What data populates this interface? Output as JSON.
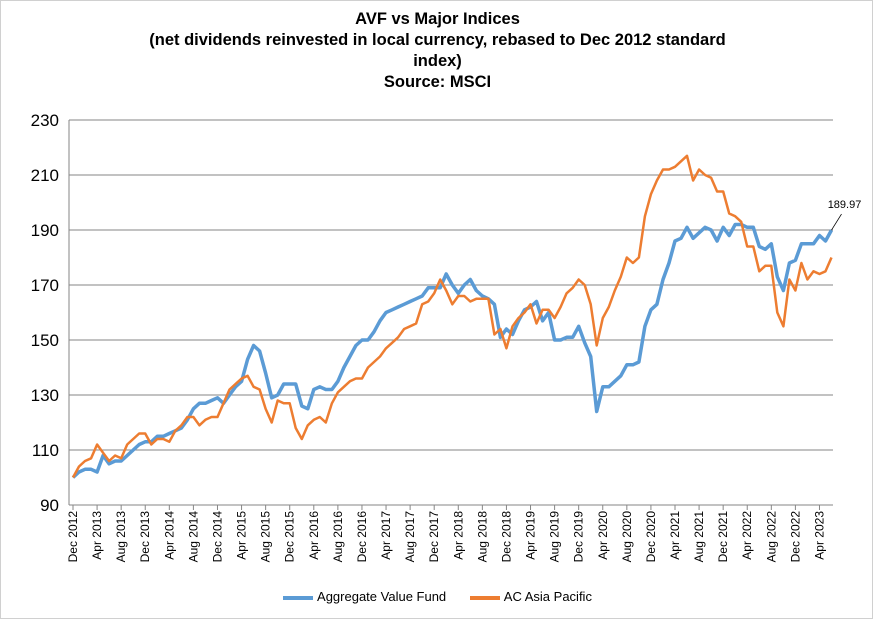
{
  "chart_data": {
    "type": "line",
    "title": [
      "AVF vs Major  Indices",
      "(net dividends reinvested in local currency, rebased to Dec 2012 standard",
      "index)",
      "Source: MSCI"
    ],
    "ylim": [
      90,
      230
    ],
    "yticks": [
      90,
      110,
      130,
      150,
      170,
      190,
      210,
      230
    ],
    "grid": true,
    "legend_placement": "bottom",
    "x_start": "Dec 2012",
    "x_end": "Jun 2023",
    "x_frequency": "monthly",
    "xtick_labels": [
      "Dec 2012",
      "Apr 2013",
      "Aug 2013",
      "Dec 2013",
      "Apr 2014",
      "Aug 2014",
      "Dec 2014",
      "Apr 2015",
      "Aug 2015",
      "Dec 2015",
      "Apr 2016",
      "Aug 2016",
      "Dec 2016",
      "Apr 2017",
      "Aug 2017",
      "Dec 2017",
      "Apr 2018",
      "Aug 2018",
      "Dec 2018",
      "Apr 2019",
      "Aug 2019",
      "Dec 2019",
      "Apr 2020",
      "Aug 2020",
      "Dec 2020",
      "Apr 2021",
      "Aug 2021",
      "Dec 2021",
      "Apr 2022",
      "Aug 2022",
      "Dec 2022",
      "Apr 2023"
    ],
    "annotation": "189.97",
    "series": [
      {
        "name": "Aggregate Value Fund",
        "color": "#5b9bd5",
        "values": [
          100,
          102,
          103,
          103,
          102,
          108,
          105,
          106,
          106,
          108,
          110,
          112,
          113,
          113,
          115,
          115,
          116,
          117,
          118,
          121,
          125,
          127,
          127,
          128,
          129,
          127,
          130,
          133,
          135,
          143,
          148,
          146,
          138,
          129,
          130,
          134,
          134,
          134,
          126,
          125,
          132,
          133,
          132,
          132,
          135,
          140,
          144,
          148,
          150,
          150,
          153,
          157,
          160,
          161,
          162,
          163,
          164,
          165,
          166,
          169,
          169,
          169,
          174,
          170,
          167,
          170,
          172,
          168,
          166,
          165,
          163,
          151,
          154,
          152,
          157,
          161,
          162,
          164,
          157,
          160,
          150,
          150,
          151,
          151,
          155,
          149,
          144,
          124,
          133,
          133,
          135,
          137,
          141,
          141,
          142,
          155,
          161,
          163,
          172,
          178,
          186,
          187,
          191,
          187,
          189,
          191,
          190,
          186,
          191,
          188,
          192,
          192,
          191,
          191,
          184,
          183,
          185,
          173,
          168,
          178,
          179,
          185,
          185,
          185,
          188,
          186,
          189.97
        ]
      },
      {
        "name": "AC Asia Pacific",
        "color": "#ed7d31",
        "values": [
          100,
          104,
          106,
          107,
          112,
          109,
          106,
          108,
          107,
          112,
          114,
          116,
          116,
          112,
          114,
          114,
          113,
          117,
          119,
          122,
          122,
          119,
          121,
          122,
          122,
          127,
          132,
          134,
          136,
          137,
          133,
          132,
          125,
          120,
          128,
          127,
          127,
          118,
          114,
          119,
          121,
          122,
          120,
          127,
          131,
          133,
          135,
          136,
          136,
          140,
          142,
          144,
          147,
          149,
          151,
          154,
          155,
          156,
          163,
          164,
          167,
          172,
          168,
          163,
          166,
          166,
          164,
          165,
          165,
          165,
          152,
          154,
          147,
          155,
          158,
          160,
          163,
          156,
          161,
          161,
          158,
          162,
          167,
          169,
          172,
          170,
          163,
          148,
          158,
          162,
          168,
          173,
          180,
          178,
          180,
          195,
          203,
          208,
          212,
          212,
          213,
          215,
          217,
          208,
          212,
          210,
          209,
          204,
          204,
          196,
          195,
          193,
          184,
          184,
          175,
          177,
          177,
          160,
          155,
          172,
          168,
          178,
          172,
          175,
          174,
          175,
          180
        ]
      }
    ]
  }
}
